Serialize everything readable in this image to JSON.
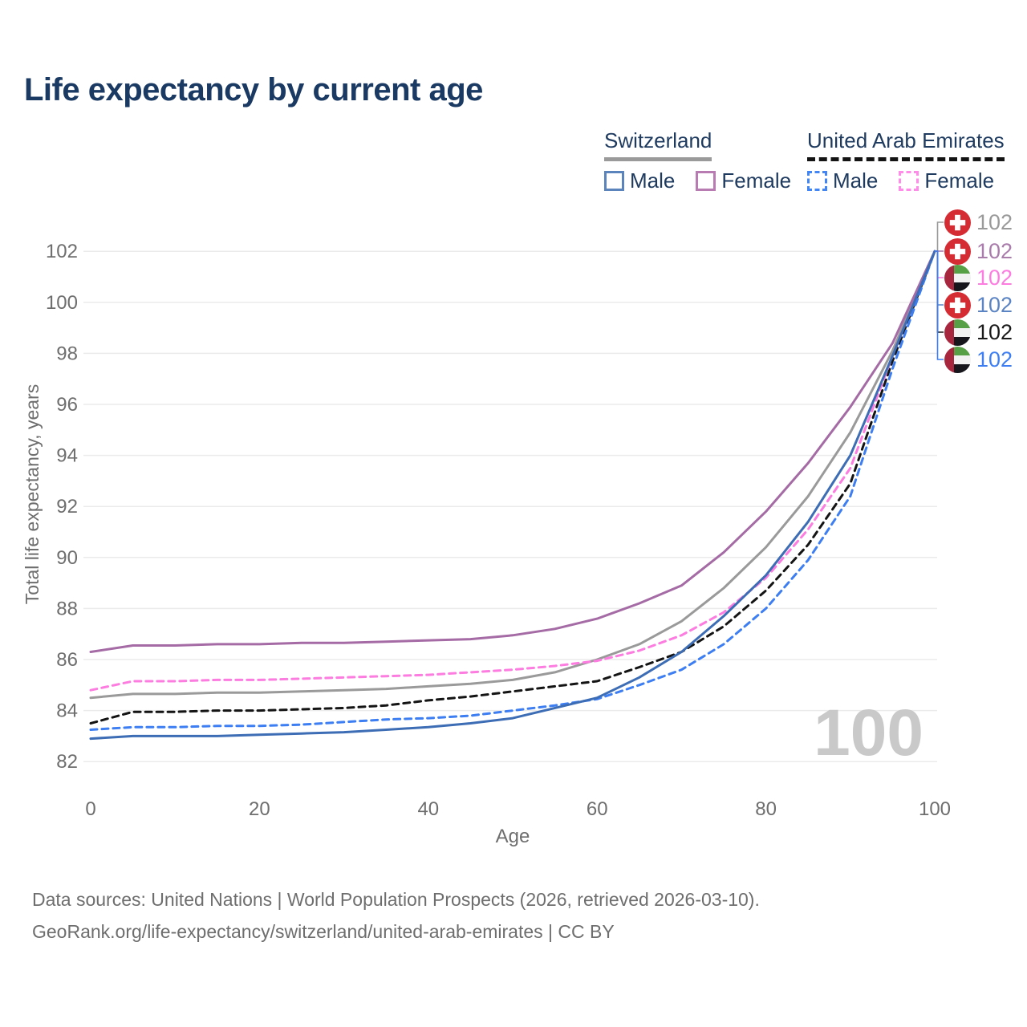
{
  "title": "Life expectancy by current age",
  "legend": {
    "groups": [
      {
        "label": "Switzerland",
        "line_style": "solid",
        "line_color": "#9a9a9a",
        "items": [
          {
            "label": "Male",
            "color": "#5b83bc",
            "dashed": false
          },
          {
            "label": "Female",
            "color": "#b87cb2",
            "dashed": false
          }
        ]
      },
      {
        "label": "United Arab Emirates",
        "line_style": "dashed",
        "line_color": "#141414",
        "items": [
          {
            "label": "Male",
            "color": "#4285f4",
            "dashed": true
          },
          {
            "label": "Female",
            "color": "#ff8ce8",
            "dashed": true
          }
        ]
      }
    ]
  },
  "chart_data": {
    "type": "line",
    "title": "Life expectancy by current age",
    "xlabel": "Age",
    "ylabel": "Total life expectancy, years",
    "xlim": [
      0,
      100
    ],
    "ylim": [
      82,
      102
    ],
    "x_ticks": [
      0,
      20,
      40,
      60,
      80,
      100
    ],
    "y_ticks": [
      82,
      84,
      86,
      88,
      90,
      92,
      94,
      96,
      98,
      100,
      102
    ],
    "grid": true,
    "legend_position": "top-right",
    "watermark": "100",
    "x": [
      0,
      5,
      10,
      15,
      20,
      25,
      30,
      35,
      40,
      45,
      50,
      55,
      60,
      65,
      70,
      75,
      80,
      85,
      90,
      95,
      100
    ],
    "series": [
      {
        "id": "switzerland-total",
        "name": "Switzerland Both sexes",
        "country": "Switzerland",
        "sex": "Both",
        "style": "solid",
        "color": "#9a9a9a",
        "values": [
          84.5,
          84.65,
          84.65,
          84.7,
          84.7,
          84.75,
          84.8,
          84.85,
          84.95,
          85.05,
          85.2,
          85.5,
          86.0,
          86.6,
          87.5,
          88.8,
          90.4,
          92.4,
          94.9,
          98.1,
          102
        ]
      },
      {
        "id": "switzerland-female",
        "name": "Switzerland Female",
        "country": "Switzerland",
        "sex": "Female",
        "style": "solid",
        "color": "#a56ba5",
        "values": [
          86.3,
          86.55,
          86.55,
          86.6,
          86.6,
          86.65,
          86.65,
          86.7,
          86.75,
          86.8,
          86.95,
          87.2,
          87.6,
          88.2,
          88.9,
          90.2,
          91.8,
          93.7,
          95.9,
          98.4,
          102
        ]
      },
      {
        "id": "uae-total",
        "name": "United Arab Emirates Both sexes",
        "country": "United Arab Emirates",
        "sex": "Both",
        "style": "dashed",
        "color": "#141414",
        "values": [
          83.5,
          83.95,
          83.95,
          84.0,
          84.0,
          84.05,
          84.1,
          84.2,
          84.4,
          84.55,
          84.75,
          84.95,
          85.15,
          85.7,
          86.3,
          87.3,
          88.7,
          90.5,
          92.9,
          97.7,
          102
        ]
      },
      {
        "id": "uae-female",
        "name": "United Arab Emirates Female",
        "country": "United Arab Emirates",
        "sex": "Female",
        "style": "dashed",
        "color": "#fc7ce0",
        "values": [
          84.8,
          85.15,
          85.15,
          85.2,
          85.2,
          85.25,
          85.3,
          85.35,
          85.4,
          85.5,
          85.6,
          85.75,
          85.95,
          86.35,
          86.95,
          87.85,
          89.2,
          91.1,
          93.5,
          97.9,
          102
        ]
      },
      {
        "id": "uae-male",
        "name": "United Arab Emirates Male",
        "country": "United Arab Emirates",
        "sex": "Male",
        "style": "dashed",
        "color": "#3d7ef2",
        "values": [
          83.25,
          83.35,
          83.35,
          83.4,
          83.4,
          83.45,
          83.55,
          83.65,
          83.7,
          83.8,
          84.0,
          84.2,
          84.45,
          85.0,
          85.6,
          86.6,
          88.0,
          89.9,
          92.4,
          97.4,
          102
        ]
      },
      {
        "id": "switzerland-male",
        "name": "Switzerland Male",
        "country": "Switzerland",
        "sex": "Male",
        "style": "solid",
        "color": "#3d6db5",
        "values": [
          82.9,
          83.0,
          83.0,
          83.0,
          83.05,
          83.1,
          83.15,
          83.25,
          83.35,
          83.5,
          83.7,
          84.1,
          84.5,
          85.3,
          86.3,
          87.7,
          89.3,
          91.4,
          94.0,
          97.9,
          102
        ]
      }
    ],
    "end_labels": [
      {
        "flag": "switzerland",
        "value": "102",
        "color": "#9a9a9a",
        "series": "Switzerland Both sexes"
      },
      {
        "flag": "switzerland",
        "value": "102",
        "color": "#a97cab",
        "series": "Switzerland Female"
      },
      {
        "flag": "uae",
        "value": "102",
        "color": "#fc7ce0",
        "series": "United Arab Emirates Female"
      },
      {
        "flag": "switzerland",
        "value": "102",
        "color": "#5b84c4",
        "series": "Switzerland Male"
      },
      {
        "flag": "uae",
        "value": "102",
        "color": "#1a1a1a",
        "series": "United Arab Emirates Both sexes"
      },
      {
        "flag": "uae",
        "value": "102",
        "color": "#3d7ef2",
        "series": "United Arab Emirates Male"
      }
    ]
  },
  "footer": {
    "line1": "Data sources: United Nations | World Population Prospects (2026, retrieved 2026-03-10).",
    "line2": "GeoRank.org/life-expectancy/switzerland/united-arab-emirates | CC BY"
  }
}
